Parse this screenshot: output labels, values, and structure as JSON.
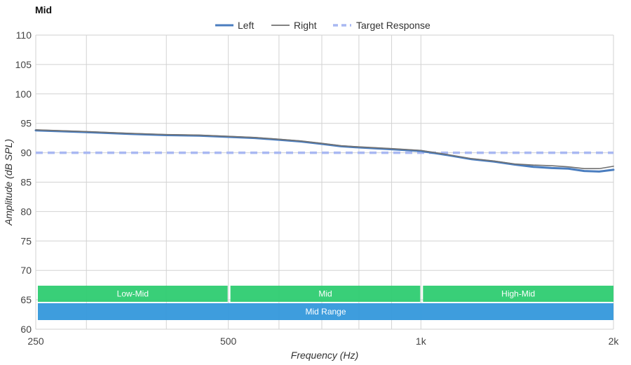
{
  "chart_data": {
    "type": "line",
    "title": "Mid",
    "xlabel": "Frequency (Hz)",
    "ylabel": "Amplitude (dB SPL)",
    "x_scale": "log",
    "xlim": [
      250,
      2000
    ],
    "ylim": [
      60,
      110
    ],
    "xticks": [
      {
        "value": 250,
        "label": "250"
      },
      {
        "value": 500,
        "label": "500"
      },
      {
        "value": 1000,
        "label": "1k"
      },
      {
        "value": 2000,
        "label": "2k"
      }
    ],
    "yticks": [
      60,
      65,
      70,
      75,
      80,
      85,
      90,
      95,
      100,
      105,
      110
    ],
    "grid": true,
    "legend_position": "top-center",
    "series": [
      {
        "name": "Left",
        "color": "#4a7dbf",
        "style": "solid-thick",
        "x": [
          250,
          300,
          350,
          400,
          450,
          500,
          550,
          600,
          650,
          700,
          750,
          800,
          900,
          1000,
          1100,
          1200,
          1300,
          1400,
          1500,
          1600,
          1700,
          1800,
          1900,
          2000
        ],
        "y": [
          93.8,
          93.5,
          93.2,
          93.0,
          92.9,
          92.7,
          92.5,
          92.2,
          91.9,
          91.5,
          91.1,
          90.9,
          90.6,
          90.3,
          89.6,
          88.9,
          88.5,
          88.0,
          87.6,
          87.4,
          87.3,
          86.9,
          86.8,
          87.1
        ]
      },
      {
        "name": "Right",
        "color": "#707070",
        "style": "solid-thin",
        "x": [
          250,
          300,
          350,
          400,
          450,
          500,
          550,
          600,
          650,
          700,
          750,
          800,
          900,
          1000,
          1100,
          1200,
          1300,
          1400,
          1500,
          1600,
          1700,
          1800,
          1900,
          2000
        ],
        "y": [
          93.9,
          93.6,
          93.3,
          93.1,
          93.0,
          92.8,
          92.6,
          92.3,
          92.0,
          91.6,
          91.2,
          91.0,
          90.7,
          90.4,
          89.7,
          89.0,
          88.6,
          88.1,
          87.9,
          87.8,
          87.6,
          87.3,
          87.3,
          87.7
        ]
      },
      {
        "name": "Target Response",
        "color": "#a9b8f2",
        "style": "dashed",
        "x": [
          250,
          2000
        ],
        "y": [
          90,
          90
        ]
      }
    ],
    "bands": [
      {
        "label": "Low-Mid",
        "x_start": 250,
        "x_end": 500,
        "row": 1,
        "color": "#2ecc71"
      },
      {
        "label": "Mid",
        "x_start": 500,
        "x_end": 1000,
        "row": 1,
        "color": "#2ecc71"
      },
      {
        "label": "High-Mid",
        "x_start": 1000,
        "x_end": 2000,
        "row": 1,
        "color": "#2ecc71"
      },
      {
        "label": "Mid Range",
        "x_start": 250,
        "x_end": 2000,
        "row": 2,
        "color": "#3498db"
      }
    ]
  }
}
